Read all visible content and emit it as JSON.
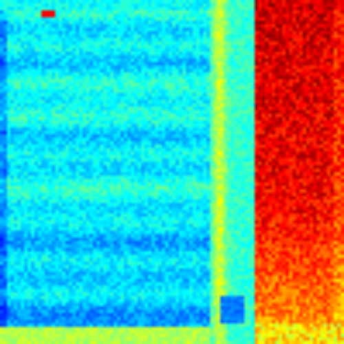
{
  "image": {
    "kind": "spectrogram-heatmap",
    "colormap": [
      "#00007f",
      "#0000ff",
      "#007fff",
      "#00ffff",
      "#7fff7f",
      "#ffff00",
      "#ff7f00",
      "#ff0000",
      "#7f0000"
    ],
    "grid": {
      "cols": 100,
      "rows": 100
    },
    "regions": {
      "left_low": 0.28,
      "left_high": 0.45,
      "separator_level": 0.58,
      "right_low": 0.72,
      "right_high": 0.92,
      "top_band_level": 0.38,
      "bottom_band_level": 0.55,
      "blob_level": 0.88
    },
    "notes_visible_text": []
  }
}
